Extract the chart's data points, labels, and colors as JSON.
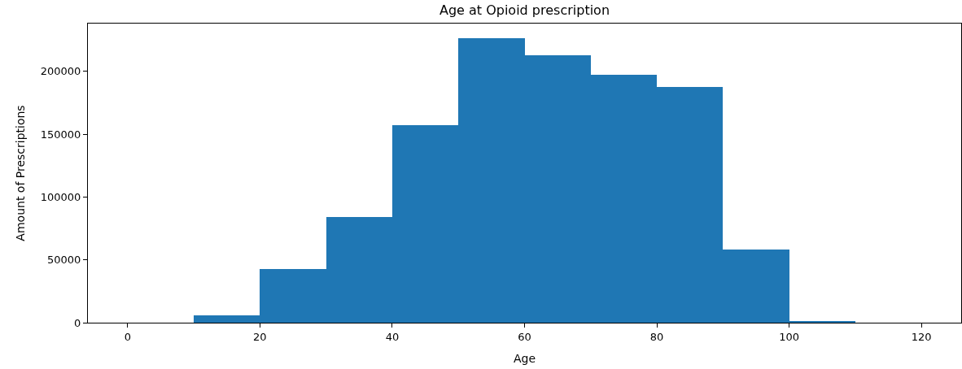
{
  "chart_data": {
    "type": "histogram",
    "title": "Age at Opioid prescription",
    "xlabel": "Age",
    "ylabel": "Amount of Prescriptions",
    "bins": [
      0,
      10,
      20,
      30,
      40,
      50,
      60,
      70,
      80,
      90,
      100,
      110,
      120
    ],
    "values": [
      0,
      5800,
      42700,
      84100,
      157200,
      226500,
      212900,
      197300,
      187600,
      58200,
      1300,
      0
    ],
    "color": "#1f77b4",
    "xlim": [
      -6,
      126
    ],
    "xticks": [
      0,
      20,
      40,
      60,
      80,
      100,
      120
    ],
    "ylim": [
      0,
      238000
    ],
    "yticks": [
      0,
      50000,
      100000,
      150000,
      200000
    ]
  }
}
